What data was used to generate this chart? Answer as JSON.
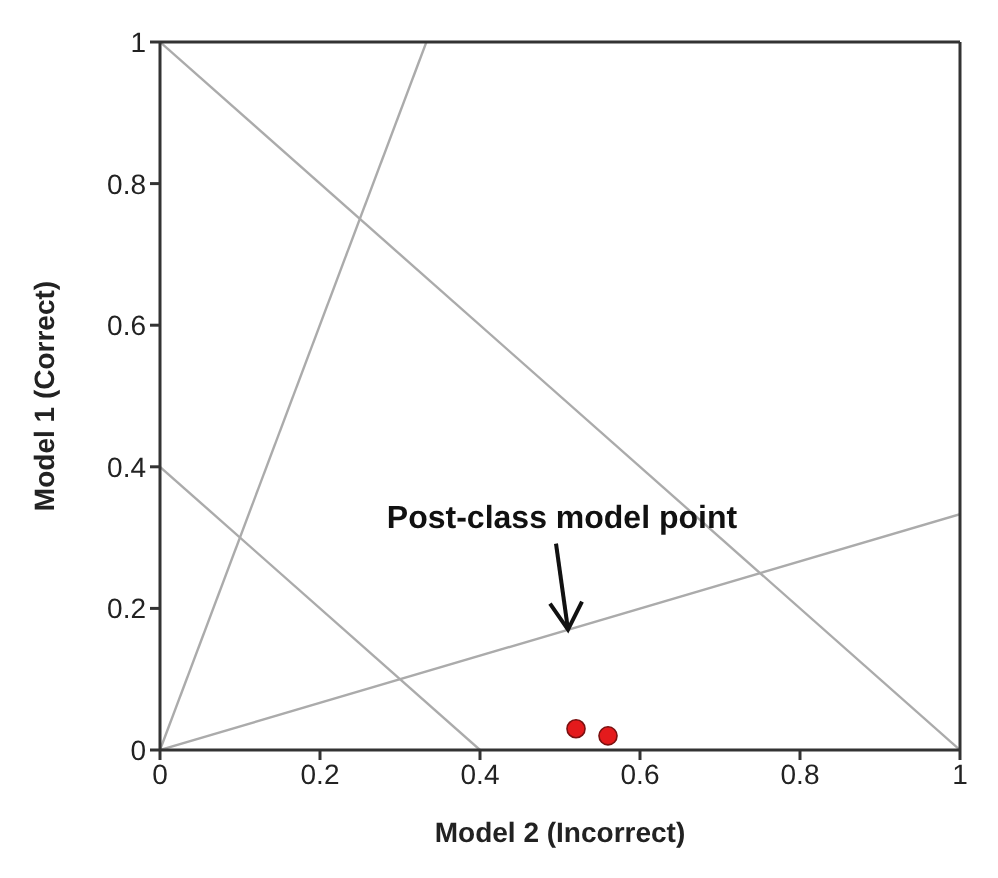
{
  "chart_data": {
    "type": "scatter",
    "xlabel": "Model 2 (Incorrect)",
    "ylabel": "Model 1 (Correct)",
    "xlim": [
      0,
      1
    ],
    "ylim": [
      0,
      1
    ],
    "xticks": [
      0,
      0.2,
      0.4,
      0.6,
      0.8,
      1
    ],
    "yticks": [
      0,
      0.2,
      0.4,
      0.6,
      0.8,
      1
    ],
    "series": [
      {
        "type": "line",
        "marker": "none",
        "color": "#ababab",
        "x": [
          0,
          1
        ],
        "values": [
          1,
          0
        ]
      },
      {
        "type": "line",
        "marker": "none",
        "color": "#ababab",
        "x": [
          0,
          0.4
        ],
        "values": [
          0.4,
          0
        ]
      },
      {
        "type": "line",
        "marker": "none",
        "color": "#ababab",
        "x": [
          0,
          0.333
        ],
        "values": [
          0,
          1
        ]
      },
      {
        "type": "line",
        "marker": "none",
        "color": "#ababab",
        "x": [
          0,
          1
        ],
        "values": [
          0,
          0.333
        ]
      },
      {
        "marker": "circle",
        "color": "#e41a1c",
        "x": [
          0.52,
          0.56
        ],
        "values": [
          0.03,
          0.02
        ]
      }
    ],
    "annotations": [
      {
        "text": "Post-class model point",
        "x": 0.51,
        "y": 0.17
      }
    ]
  }
}
